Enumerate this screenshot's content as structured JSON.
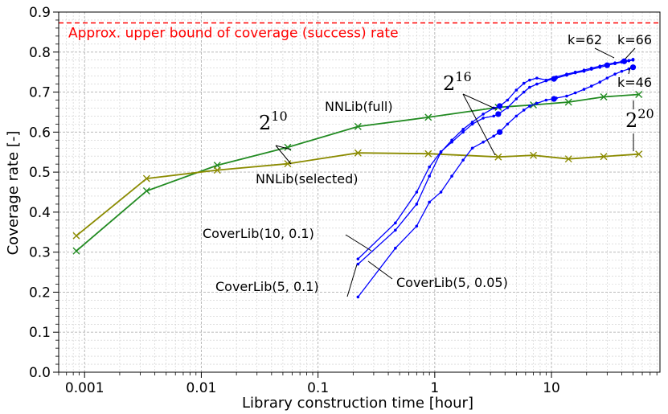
{
  "chart_data": {
    "type": "line",
    "xlabel": "Library construction time [hour]",
    "ylabel": "Coverage rate [-]",
    "xscale": "log",
    "xlim": [
      0.0006,
      85
    ],
    "ylim": [
      0.0,
      0.9
    ],
    "grid": true,
    "x_ticks": [
      {
        "value": 0.001,
        "label": "0.001"
      },
      {
        "value": 0.01,
        "label": "0.01"
      },
      {
        "value": 0.1,
        "label": "0.1"
      },
      {
        "value": 1,
        "label": "1"
      },
      {
        "value": 10,
        "label": "10"
      }
    ],
    "y_ticks": [
      {
        "value": 0.0,
        "label": "0.0"
      },
      {
        "value": 0.1,
        "label": "0.1"
      },
      {
        "value": 0.2,
        "label": "0.2"
      },
      {
        "value": 0.3,
        "label": "0.3"
      },
      {
        "value": 0.4,
        "label": "0.4"
      },
      {
        "value": 0.5,
        "label": "0.5"
      },
      {
        "value": 0.6,
        "label": "0.6"
      },
      {
        "value": 0.7,
        "label": "0.7"
      },
      {
        "value": 0.8,
        "label": "0.8"
      },
      {
        "value": 0.9,
        "label": "0.9"
      }
    ],
    "upper_bound": {
      "y": 0.873,
      "label": "Approx. upper bound of coverage (success) rate",
      "color": "#ff0000"
    },
    "series": [
      {
        "name": "NNLib(full)",
        "color": "#228b22",
        "marker": "x",
        "points": [
          [
            0.00085,
            0.303
          ],
          [
            0.0034,
            0.453
          ],
          [
            0.0137,
            0.517
          ],
          [
            0.055,
            0.562
          ],
          [
            0.22,
            0.614
          ],
          [
            0.88,
            0.637
          ],
          [
            3.5,
            0.662
          ],
          [
            7.0,
            0.668
          ],
          [
            14.0,
            0.675
          ],
          [
            28.0,
            0.688
          ],
          [
            56.0,
            0.694
          ]
        ]
      },
      {
        "name": "NNLib(selected)",
        "color": "#8b8b00",
        "marker": "x",
        "points": [
          [
            0.00085,
            0.341
          ],
          [
            0.0034,
            0.484
          ],
          [
            0.0137,
            0.505
          ],
          [
            0.055,
            0.521
          ],
          [
            0.22,
            0.548
          ],
          [
            0.88,
            0.546
          ],
          [
            3.5,
            0.538
          ],
          [
            7.0,
            0.542
          ],
          [
            14.0,
            0.533
          ],
          [
            28.0,
            0.539
          ],
          [
            56.0,
            0.545
          ]
        ]
      },
      {
        "name": "CoverLib(10, 0.1)",
        "color": "#0000ff",
        "marker": "dot",
        "points": [
          [
            0.22,
            0.283
          ],
          [
            0.46,
            0.373
          ],
          [
            0.7,
            0.45
          ],
          [
            0.9,
            0.513
          ],
          [
            1.13,
            0.551
          ],
          [
            1.4,
            0.575
          ],
          [
            1.75,
            0.6
          ],
          [
            2.1,
            0.62
          ],
          [
            2.6,
            0.635
          ],
          [
            3.2,
            0.64
          ],
          [
            3.5,
            0.645
          ],
          [
            4.2,
            0.661
          ],
          [
            5.0,
            0.683
          ],
          [
            5.8,
            0.7
          ],
          [
            6.5,
            0.712
          ],
          [
            7.5,
            0.72
          ],
          [
            9.0,
            0.728
          ],
          [
            11.0,
            0.735
          ],
          [
            13.5,
            0.742
          ],
          [
            16.0,
            0.748
          ],
          [
            19.0,
            0.752
          ],
          [
            22.0,
            0.757
          ],
          [
            26.0,
            0.762
          ],
          [
            30.0,
            0.767
          ],
          [
            35.0,
            0.771
          ],
          [
            40.0,
            0.775
          ],
          [
            46.0,
            0.778
          ],
          [
            50.0,
            0.78
          ]
        ]
      },
      {
        "name": "CoverLib(5, 0.1)",
        "color": "#0000ff",
        "marker": "dot",
        "points": [
          [
            0.22,
            0.27
          ],
          [
            0.46,
            0.355
          ],
          [
            0.7,
            0.42
          ],
          [
            0.9,
            0.49
          ],
          [
            1.13,
            0.55
          ],
          [
            1.4,
            0.58
          ],
          [
            1.75,
            0.607
          ],
          [
            2.1,
            0.625
          ],
          [
            2.6,
            0.645
          ],
          [
            3.2,
            0.66
          ],
          [
            3.6,
            0.665
          ],
          [
            4.2,
            0.68
          ],
          [
            5.0,
            0.705
          ],
          [
            5.8,
            0.722
          ],
          [
            6.5,
            0.73
          ],
          [
            7.5,
            0.735
          ],
          [
            9.0,
            0.73
          ],
          [
            11.0,
            0.738
          ],
          [
            13.5,
            0.745
          ],
          [
            16.0,
            0.75
          ],
          [
            19.0,
            0.755
          ],
          [
            22.0,
            0.76
          ],
          [
            26.0,
            0.765
          ],
          [
            30.0,
            0.77
          ],
          [
            35.0,
            0.773
          ],
          [
            40.0,
            0.776
          ],
          [
            46.0,
            0.779
          ],
          [
            50.0,
            0.782
          ]
        ]
      },
      {
        "name": "CoverLib(5, 0.05)",
        "color": "#0000ff",
        "marker": "dot",
        "points": [
          [
            0.22,
            0.188
          ],
          [
            0.46,
            0.31
          ],
          [
            0.7,
            0.365
          ],
          [
            0.9,
            0.425
          ],
          [
            1.13,
            0.45
          ],
          [
            1.4,
            0.49
          ],
          [
            1.75,
            0.53
          ],
          [
            2.1,
            0.56
          ],
          [
            2.6,
            0.575
          ],
          [
            3.2,
            0.59
          ],
          [
            3.6,
            0.6
          ],
          [
            4.2,
            0.62
          ],
          [
            5.0,
            0.64
          ],
          [
            5.8,
            0.655
          ],
          [
            6.5,
            0.665
          ],
          [
            7.5,
            0.672
          ],
          [
            9.0,
            0.68
          ],
          [
            11.0,
            0.685
          ],
          [
            13.5,
            0.69
          ],
          [
            16.0,
            0.698
          ],
          [
            19.0,
            0.707
          ],
          [
            22.0,
            0.715
          ],
          [
            26.0,
            0.725
          ],
          [
            30.0,
            0.735
          ],
          [
            35.0,
            0.745
          ],
          [
            40.0,
            0.752
          ],
          [
            46.0,
            0.758
          ],
          [
            50.0,
            0.762
          ]
        ]
      }
    ],
    "big_markers": [
      {
        "series": "CoverLib(10, 0.1)",
        "x": 3.5,
        "y": 0.645
      },
      {
        "series": "CoverLib(10, 0.1)",
        "x": 10.5,
        "y": 0.733
      },
      {
        "series": "CoverLib(10, 0.1)",
        "x": 30.0,
        "y": 0.767
      },
      {
        "series": "CoverLib(5, 0.1)",
        "x": 3.6,
        "y": 0.665
      },
      {
        "series": "CoverLib(5, 0.1)",
        "x": 42.0,
        "y": 0.777
      },
      {
        "series": "CoverLib(5, 0.05)",
        "x": 3.6,
        "y": 0.6
      },
      {
        "series": "CoverLib(5, 0.05)",
        "x": 10.5,
        "y": 0.683
      },
      {
        "series": "CoverLib(5, 0.05)",
        "x": 50.0,
        "y": 0.762
      }
    ],
    "annotations": {
      "two10": {
        "base": "2",
        "exp": "10"
      },
      "two16": {
        "base": "2",
        "exp": "16"
      },
      "two20": {
        "base": "2",
        "exp": "20"
      },
      "nnlib_full": "NNLib(full)",
      "nnlib_selected": "NNLib(selected)",
      "coverlib_10_01": "CoverLib(10, 0.1)",
      "coverlib_5_01": "CoverLib(5, 0.1)",
      "coverlib_5_005": "CoverLib(5, 0.05)",
      "k62": "k=62",
      "k66": "k=66",
      "k46": "k=46"
    }
  }
}
